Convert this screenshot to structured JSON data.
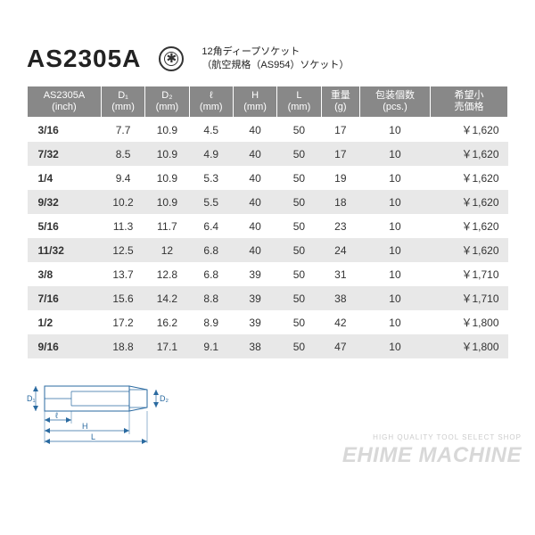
{
  "header": {
    "model": "AS2305A",
    "desc_line1": "12角ディープソケット",
    "desc_line2": "（航空規格（AS954）ソケット）"
  },
  "table": {
    "columns": [
      {
        "line1": "AS2305A",
        "line2": "(inch)"
      },
      {
        "line1": "D₁",
        "line2": "(mm)"
      },
      {
        "line1": "D₂",
        "line2": "(mm)"
      },
      {
        "line1": "ℓ",
        "line2": "(mm)"
      },
      {
        "line1": "H",
        "line2": "(mm)"
      },
      {
        "line1": "L",
        "line2": "(mm)"
      },
      {
        "line1": "重量",
        "line2": "(g)"
      },
      {
        "line1": "包装個数",
        "line2": "(pcs.)"
      },
      {
        "line1": "希望小",
        "line2": "売価格"
      }
    ],
    "rows": [
      [
        "3/16",
        "7.7",
        "10.9",
        "4.5",
        "40",
        "50",
        "17",
        "10",
        "￥1,620"
      ],
      [
        "7/32",
        "8.5",
        "10.9",
        "4.9",
        "40",
        "50",
        "17",
        "10",
        "￥1,620"
      ],
      [
        "1/4",
        "9.4",
        "10.9",
        "5.3",
        "40",
        "50",
        "19",
        "10",
        "￥1,620"
      ],
      [
        "9/32",
        "10.2",
        "10.9",
        "5.5",
        "40",
        "50",
        "18",
        "10",
        "￥1,620"
      ],
      [
        "5/16",
        "11.3",
        "11.7",
        "6.4",
        "40",
        "50",
        "23",
        "10",
        "￥1,620"
      ],
      [
        "11/32",
        "12.5",
        "12",
        "6.8",
        "40",
        "50",
        "24",
        "10",
        "￥1,620"
      ],
      [
        "3/8",
        "13.7",
        "12.8",
        "6.8",
        "39",
        "50",
        "31",
        "10",
        "￥1,710"
      ],
      [
        "7/16",
        "15.6",
        "14.2",
        "8.8",
        "39",
        "50",
        "38",
        "10",
        "￥1,710"
      ],
      [
        "1/2",
        "17.2",
        "16.2",
        "8.9",
        "39",
        "50",
        "42",
        "10",
        "￥1,800"
      ],
      [
        "9/16",
        "18.8",
        "17.1",
        "9.1",
        "38",
        "50",
        "47",
        "10",
        "￥1,800"
      ]
    ]
  },
  "diagram": {
    "d1": "D₁",
    "d2": "D₂",
    "l_small": "ℓ",
    "h": "H",
    "l_big": "L",
    "stroke": "#2a6aa0",
    "width": 160,
    "height": 90
  },
  "watermark": {
    "sub": "HIGH QUALITY TOOL SELECT SHOP",
    "main": "EHIME MACHINE"
  },
  "colors": {
    "header_bg": "#888888",
    "stripe_bg": "#e8e8e8"
  }
}
